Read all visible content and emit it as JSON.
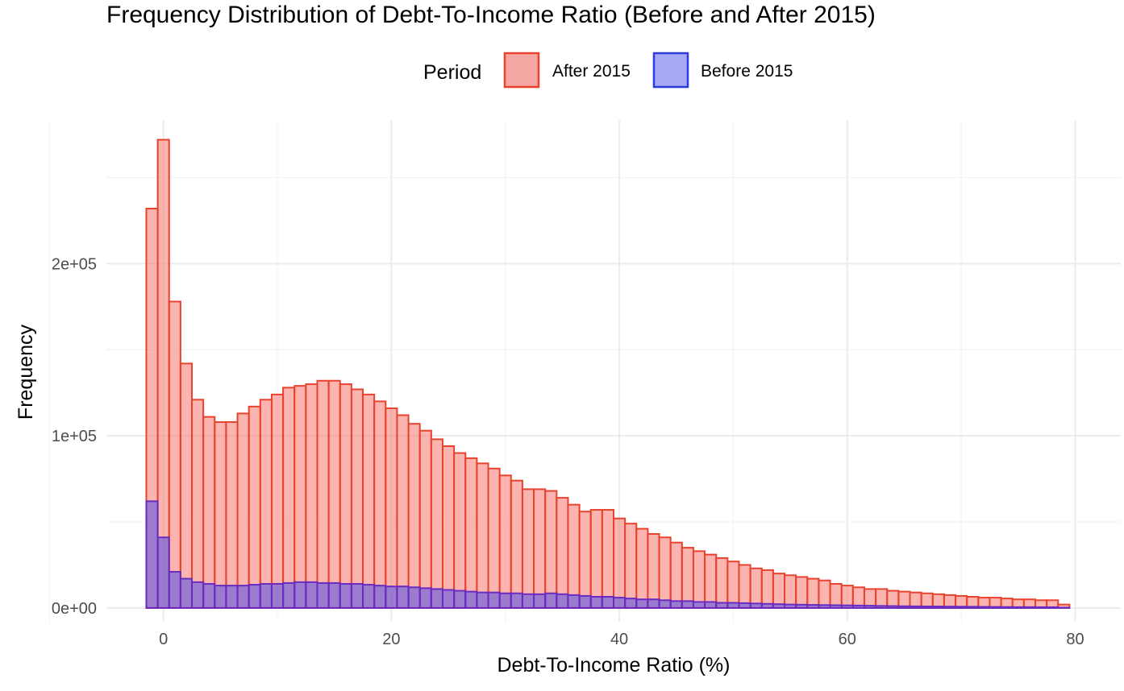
{
  "chart_data": {
    "type": "histogram",
    "title": "Frequency Distribution of Debt-To-Income Ratio (Before and After 2015)",
    "xlabel": "Debt-To-Income Ratio (%)",
    "ylabel": "Frequency",
    "xlim": [
      -5,
      84
    ],
    "ylim": [
      -8000,
      283000
    ],
    "x_ticks": [
      0,
      20,
      40,
      60,
      80
    ],
    "x_tick_labels": [
      "0",
      "20",
      "40",
      "60",
      "80"
    ],
    "y_ticks": [
      0,
      100000,
      200000
    ],
    "y_tick_labels": [
      "0e+00",
      "1e+05",
      "2e+05"
    ],
    "grid": true,
    "bin_width": 1,
    "bin_start": -1.5,
    "legend": {
      "title": "Period",
      "position": "top",
      "entries": [
        {
          "label": "After 2015",
          "fill": "#f4a6a3",
          "stroke": "#e8432e"
        },
        {
          "label": "Before 2015",
          "fill": "#a7a9f4",
          "stroke": "#2b3cd8"
        }
      ]
    },
    "series": [
      {
        "name": "After 2015",
        "fill": "#f8766d",
        "stroke": "#e8432e",
        "values": [
          232000,
          272000,
          178000,
          142000,
          121000,
          111000,
          108000,
          108000,
          113000,
          117000,
          121000,
          124000,
          128000,
          129000,
          130000,
          132000,
          132000,
          130000,
          127000,
          124000,
          120000,
          116000,
          112000,
          107000,
          103000,
          98000,
          94000,
          90000,
          87000,
          84000,
          81000,
          77000,
          74000,
          69000,
          69000,
          68000,
          64000,
          60000,
          56000,
          57000,
          57000,
          52000,
          49000,
          46000,
          43000,
          41000,
          38000,
          35000,
          33000,
          31000,
          29000,
          27000,
          25000,
          23000,
          22000,
          20000,
          19000,
          18000,
          17000,
          16000,
          14000,
          13000,
          12000,
          11000,
          11000,
          10000,
          9500,
          9000,
          8500,
          8000,
          7500,
          7000,
          6500,
          6000,
          6000,
          5500,
          5000,
          5000,
          4500,
          4500,
          2000
        ]
      },
      {
        "name": "Before 2015",
        "fill": "#4a4de8",
        "stroke": "#6a2bc0",
        "values": [
          62000,
          41000,
          21000,
          17000,
          15000,
          14000,
          13000,
          13000,
          13000,
          13500,
          14000,
          14000,
          14500,
          15000,
          15000,
          14500,
          14500,
          14000,
          14000,
          13500,
          13000,
          12500,
          12500,
          12000,
          11500,
          11000,
          10500,
          10000,
          9500,
          9000,
          9000,
          8500,
          8500,
          8000,
          8000,
          8500,
          8000,
          7500,
          7000,
          6500,
          6500,
          6000,
          5500,
          5000,
          5000,
          4500,
          4000,
          4000,
          3500,
          3500,
          3000,
          3000,
          2800,
          2600,
          2400,
          2200,
          2000,
          1900,
          1800,
          1700,
          1600,
          1500,
          1400,
          1300,
          1200,
          1100,
          1000,
          950,
          900,
          850,
          800,
          750,
          700,
          650,
          600,
          550,
          500,
          500,
          450,
          450,
          200
        ]
      }
    ]
  }
}
